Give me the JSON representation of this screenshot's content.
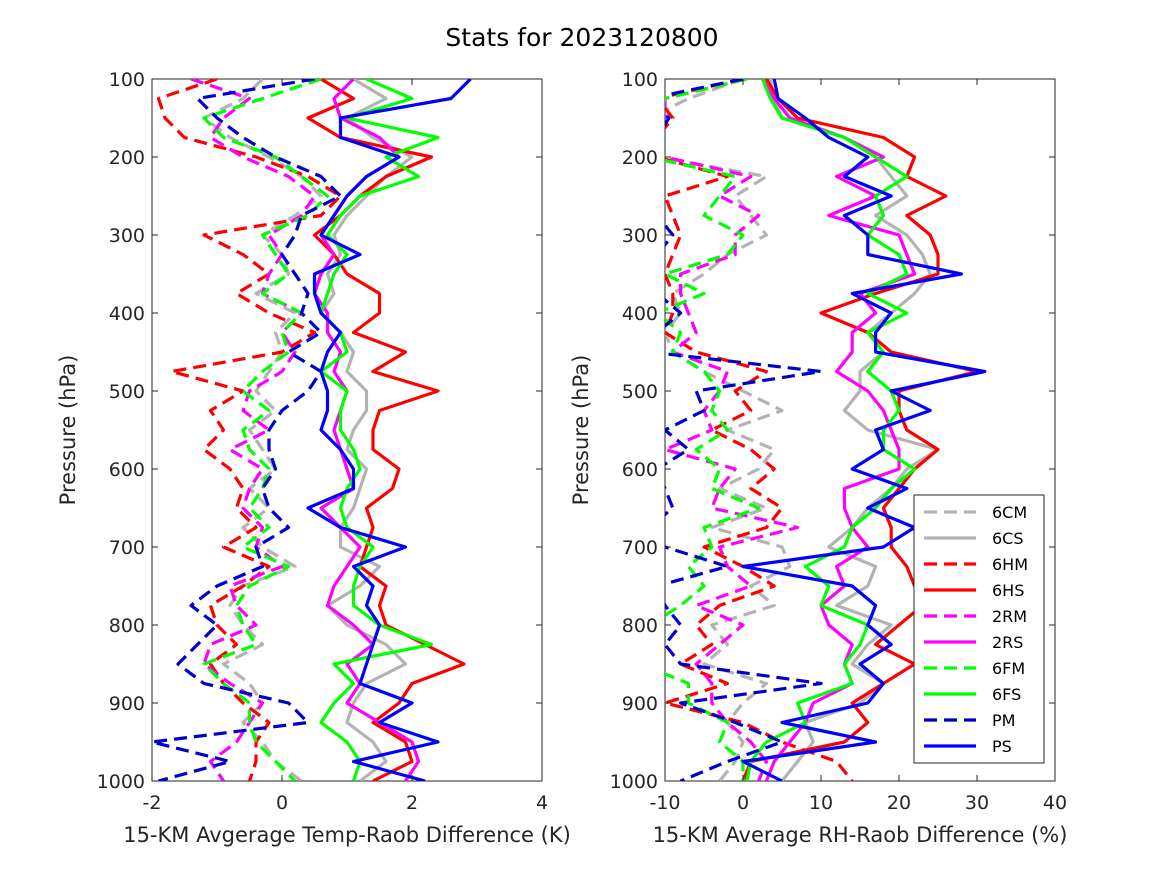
{
  "title": "Stats for 2023120800",
  "chart_data": [
    {
      "type": "line",
      "xlabel": "15-KM Avgerage Temp-Raob Difference (K)",
      "ylabel": "Pressure (hPa)",
      "xlim": [
        -2,
        4
      ],
      "ylim": [
        100,
        1000
      ],
      "y_reversed": true,
      "xticks": [
        "-2",
        "0",
        "2",
        "4"
      ],
      "yticks": [
        "100",
        "200",
        "300",
        "400",
        "500",
        "600",
        "700",
        "800",
        "900",
        "1000"
      ],
      "pressure": [
        100,
        125,
        150,
        175,
        200,
        225,
        250,
        275,
        300,
        325,
        350,
        375,
        400,
        425,
        450,
        475,
        500,
        525,
        550,
        575,
        600,
        625,
        650,
        675,
        700,
        725,
        750,
        775,
        800,
        825,
        850,
        875,
        900,
        925,
        950,
        975,
        1000
      ],
      "series": [
        {
          "name": "6CM",
          "color": "#b3b3b3",
          "dash": true,
          "values": [
            -0.3,
            -0.6,
            -1.2,
            -0.8,
            -0.2,
            0.3,
            0.6,
            0.2,
            -0.3,
            0.0,
            0.1,
            -0.4,
            0.2,
            -0.1,
            0.0,
            -0.2,
            -0.4,
            -0.1,
            -0.5,
            -0.3,
            -0.1,
            -0.5,
            -0.2,
            -0.6,
            -0.3,
            0.2,
            -0.6,
            -0.8,
            -0.6,
            -0.3,
            -0.9,
            -0.5,
            -0.3,
            -0.6,
            -0.3,
            -0.1,
            0.3
          ]
        },
        {
          "name": "6CS",
          "color": "#b3b3b3",
          "dash": false,
          "values": [
            1.1,
            1.6,
            1.0,
            1.4,
            2.0,
            1.6,
            1.3,
            1.0,
            0.8,
            0.9,
            0.7,
            0.8,
            0.6,
            0.9,
            1.1,
            1.0,
            1.3,
            1.3,
            1.1,
            1.0,
            1.3,
            1.2,
            1.1,
            0.9,
            0.9,
            1.5,
            1.2,
            0.7,
            1.0,
            1.6,
            1.9,
            1.3,
            1.1,
            1.0,
            1.4,
            1.6,
            1.2
          ]
        },
        {
          "name": "6HM",
          "color": "#ff0000",
          "dash": true,
          "values": [
            -1.0,
            -1.9,
            -1.8,
            -1.5,
            -0.4,
            0.4,
            0.9,
            0.6,
            -1.2,
            -0.6,
            -0.2,
            -0.7,
            -0.2,
            0.5,
            0.0,
            -1.7,
            -0.6,
            -1.1,
            -0.9,
            -1.2,
            -0.8,
            -0.6,
            -0.7,
            -0.4,
            -0.9,
            -0.2,
            -0.6,
            -1.1,
            -1.0,
            -0.7,
            -1.1,
            -0.9,
            -0.6,
            -0.2,
            -0.4,
            -0.4,
            -0.5
          ]
        },
        {
          "name": "6HS",
          "color": "#ff0000",
          "dash": false,
          "values": [
            0.6,
            1.1,
            0.4,
            0.9,
            2.3,
            1.6,
            1.2,
            0.9,
            0.5,
            0.8,
            1.0,
            1.5,
            1.5,
            1.1,
            1.9,
            1.4,
            2.4,
            1.5,
            1.4,
            1.4,
            1.8,
            1.7,
            1.3,
            1.4,
            1.3,
            1.2,
            1.6,
            1.5,
            1.6,
            2.2,
            2.8,
            2.0,
            1.8,
            1.4,
            1.9,
            2.0,
            1.4
          ]
        },
        {
          "name": "2RM",
          "color": "#ff00ff",
          "dash": true,
          "values": [
            -1.4,
            -0.5,
            -0.9,
            -1.1,
            -0.6,
            0.1,
            0.5,
            0.3,
            -0.2,
            0.0,
            -0.2,
            -0.3,
            0.3,
            0.0,
            0.2,
            0.0,
            -0.5,
            -0.6,
            -0.2,
            -0.8,
            -0.3,
            -0.5,
            -0.6,
            -0.3,
            -0.4,
            0.0,
            -0.8,
            -0.7,
            -0.4,
            -1.1,
            -1.2,
            -0.8,
            -0.3,
            -0.5,
            -0.7,
            -1.1,
            -0.9
          ]
        },
        {
          "name": "2RS",
          "color": "#ff00ff",
          "dash": false,
          "values": [
            1.1,
            0.8,
            0.9,
            1.5,
            1.8,
            1.3,
            1.0,
            0.8,
            0.6,
            0.8,
            0.6,
            0.5,
            0.7,
            0.7,
            0.9,
            0.8,
            1.0,
            0.9,
            0.8,
            0.9,
            1.0,
            1.1,
            0.6,
            0.9,
            1.2,
            1.0,
            0.8,
            0.7,
            1.1,
            1.4,
            1.0,
            1.2,
            1.0,
            1.5,
            2.0,
            2.1,
            1.9
          ]
        },
        {
          "name": "6FM",
          "color": "#00ff00",
          "dash": true,
          "values": [
            0.6,
            -0.3,
            -1.2,
            -0.9,
            -0.1,
            0.3,
            0.7,
            0.4,
            -0.3,
            -0.1,
            0.1,
            -0.3,
            0.3,
            0.0,
            0.1,
            -0.3,
            -0.6,
            -0.2,
            -0.6,
            -0.5,
            -0.2,
            -0.3,
            -0.5,
            -0.2,
            -0.6,
            0.1,
            -0.5,
            -0.7,
            -0.6,
            -0.4,
            -1.2,
            -0.9,
            -0.5,
            -0.5,
            -0.4,
            -0.1,
            0.2
          ]
        },
        {
          "name": "6FS",
          "color": "#00ff00",
          "dash": false,
          "values": [
            1.3,
            2.0,
            1.0,
            2.4,
            1.6,
            2.1,
            1.2,
            0.9,
            0.7,
            1.0,
            0.8,
            0.7,
            0.6,
            0.9,
            1.0,
            0.6,
            1.0,
            0.9,
            0.9,
            1.1,
            1.2,
            1.0,
            0.9,
            1.0,
            1.4,
            1.2,
            1.1,
            1.1,
            1.5,
            2.3,
            0.8,
            1.1,
            0.8,
            0.6,
            1.0,
            1.2,
            1.1
          ]
        },
        {
          "name": "PM",
          "color": "#0000cc",
          "dash": true,
          "values": [
            0.5,
            -1.3,
            -1.0,
            -0.6,
            -0.1,
            0.6,
            0.9,
            0.3,
            0.2,
            0.0,
            0.2,
            0.4,
            0.3,
            0.6,
            0.1,
            0.6,
            0.4,
            0.0,
            -0.2,
            -0.2,
            -0.1,
            -0.3,
            -0.2,
            0.1,
            -0.4,
            -0.3,
            -1.0,
            -1.4,
            -1.0,
            -1.3,
            -1.6,
            -1.2,
            0.1,
            0.4,
            -2.0,
            -0.8,
            -1.9
          ]
        },
        {
          "name": "PS",
          "color": "#0000ff",
          "dash": false,
          "values": [
            2.9,
            2.6,
            0.9,
            0.9,
            1.8,
            1.3,
            1.0,
            0.8,
            0.6,
            1.2,
            0.5,
            0.5,
            0.6,
            0.9,
            0.7,
            0.6,
            0.7,
            0.7,
            0.6,
            0.9,
            1.1,
            1.1,
            0.4,
            0.9,
            1.9,
            1.1,
            1.4,
            1.3,
            1.5,
            1.4,
            1.3,
            1.2,
            2.0,
            1.5,
            2.4,
            1.1,
            2.2
          ]
        }
      ]
    },
    {
      "type": "line",
      "xlabel": "15-KM Average RH-Raob Difference (%)",
      "ylabel": "Pressure (hPa)",
      "xlim": [
        -10,
        40
      ],
      "ylim": [
        100,
        1000
      ],
      "y_reversed": true,
      "xticks": [
        "-10",
        "0",
        "10",
        "20",
        "30",
        "40"
      ],
      "yticks": [
        "100",
        "200",
        "300",
        "400",
        "500",
        "600",
        "700",
        "800",
        "900",
        "1000"
      ],
      "pressure": [
        100,
        125,
        150,
        175,
        200,
        225,
        250,
        275,
        300,
        325,
        350,
        375,
        400,
        425,
        450,
        475,
        500,
        525,
        550,
        575,
        600,
        625,
        650,
        675,
        700,
        725,
        750,
        775,
        800,
        825,
        850,
        875,
        900,
        925,
        950,
        975,
        1000
      ],
      "series": [
        {
          "name": "6CM",
          "color": "#b3b3b3",
          "dash": true,
          "values": [
            0.0,
            -7.0,
            -12.0,
            -13.0,
            -11.0,
            3.0,
            -1.0,
            1.0,
            3.0,
            -2.0,
            -5.0,
            -9.0,
            -8.0,
            -10.0,
            -9.0,
            -5.0,
            0.0,
            5.0,
            -2.0,
            4.0,
            2.0,
            -3.0,
            3.0,
            -4.0,
            5.0,
            6.0,
            1.0,
            4.0,
            -4.0,
            -2.0,
            -5.0,
            3.0,
            0.0,
            -2.0,
            0.0,
            -1.0,
            -3.0
          ]
        },
        {
          "name": "6CS",
          "color": "#b3b3b3",
          "dash": false,
          "values": [
            3.5,
            4.0,
            5.0,
            13.0,
            17.0,
            19.0,
            21.0,
            17.0,
            21.0,
            23.0,
            24.0,
            22.0,
            19.0,
            16.0,
            18.0,
            15.0,
            15.0,
            13.0,
            16.0,
            25.0,
            21.0,
            19.0,
            16.0,
            14.0,
            11.0,
            17.0,
            16.0,
            12.0,
            19.0,
            16.0,
            14.0,
            18.0,
            15.0,
            8.0,
            9.0,
            7.0,
            5.0
          ]
        },
        {
          "name": "6HM",
          "color": "#ff0000",
          "dash": true,
          "values": [
            0.0,
            -11.0,
            -9.0,
            -11.0,
            -11.0,
            -2.0,
            -10.0,
            -9.0,
            -8.0,
            -9.0,
            -10.0,
            -9.0,
            -9.0,
            -10.0,
            -6.0,
            3.0,
            -1.0,
            1.0,
            -4.0,
            1.0,
            4.0,
            1.0,
            5.0,
            3.0,
            -5.0,
            0.0,
            4.0,
            -3.0,
            -6.0,
            -4.0,
            -8.0,
            -2.0,
            -10.0,
            0.0,
            5.0,
            12.0,
            14.0
          ]
        },
        {
          "name": "6HS",
          "color": "#ff0000",
          "dash": false,
          "values": [
            3.0,
            4.5,
            7.0,
            18.0,
            22.0,
            21.0,
            26.0,
            21.0,
            24.0,
            25.0,
            25.0,
            17.0,
            10.0,
            16.0,
            19.0,
            30.0,
            20.0,
            20.0,
            21.0,
            25.0,
            22.0,
            20.0,
            18.0,
            19.0,
            19.0,
            21.0,
            22.0,
            23.0,
            20.0,
            17.0,
            22.0,
            18.0,
            14.0,
            16.0,
            13.0,
            1.0,
            0.0
          ]
        },
        {
          "name": "2RM",
          "color": "#ff00ff",
          "dash": true,
          "values": [
            0.5,
            -10.0,
            -10.0,
            -12.0,
            -10.0,
            1.0,
            -3.0,
            2.0,
            -1.0,
            -1.0,
            -8.0,
            -8.0,
            -7.0,
            -6.0,
            -9.0,
            -2.0,
            -3.0,
            -5.0,
            -4.0,
            -10.0,
            -1.0,
            -3.0,
            -4.0,
            7.0,
            -3.0,
            -2.0,
            1.0,
            -6.0,
            0.0,
            -3.0,
            -6.0,
            -4.0,
            -4.0,
            -2.0,
            1.0,
            3.0,
            2.0
          ]
        },
        {
          "name": "2RS",
          "color": "#ff00ff",
          "dash": false,
          "values": [
            2.5,
            4.0,
            6.0,
            13.0,
            18.0,
            12.0,
            17.0,
            11.0,
            20.0,
            21.0,
            22.0,
            15.0,
            17.0,
            14.0,
            14.0,
            12.0,
            16.0,
            18.0,
            19.0,
            20.0,
            20.0,
            13.0,
            13.0,
            14.0,
            16.0,
            12.0,
            13.0,
            10.0,
            11.0,
            14.0,
            13.0,
            14.0,
            9.0,
            8.0,
            6.0,
            4.0,
            3.0
          ]
        },
        {
          "name": "6FM",
          "color": "#00ff00",
          "dash": true,
          "values": [
            0.5,
            -10.0,
            -11.0,
            -11.0,
            -12.0,
            -1.0,
            -3.0,
            -5.0,
            0.0,
            -2.0,
            -10.0,
            -5.0,
            -11.0,
            -8.0,
            -9.0,
            -5.0,
            -3.0,
            -4.0,
            -2.0,
            -6.0,
            -3.0,
            -4.0,
            2.0,
            -5.0,
            -4.0,
            -7.0,
            -5.0,
            -8.0,
            -12.0,
            -11.0,
            -13.0,
            -7.0,
            -7.0,
            -2.0,
            -3.0,
            0.0,
            0.0
          ]
        },
        {
          "name": "6FS",
          "color": "#00ff00",
          "dash": false,
          "values": [
            2.5,
            3.5,
            5.0,
            13.0,
            17.0,
            21.0,
            17.0,
            18.0,
            16.0,
            20.0,
            21.0,
            16.0,
            21.0,
            16.0,
            18.0,
            16.0,
            19.0,
            20.0,
            18.0,
            18.0,
            22.0,
            19.0,
            17.0,
            14.0,
            13.0,
            8.0,
            11.0,
            10.0,
            16.0,
            15.0,
            13.0,
            14.0,
            7.0,
            8.0,
            3.0,
            1.0,
            0.5
          ]
        },
        {
          "name": "PM",
          "color": "#0000cc",
          "dash": true,
          "values": [
            0.0,
            -12.0,
            -9.5,
            -11.0,
            -11.0,
            -12.0,
            -12.0,
            -11.0,
            -9.0,
            -11.0,
            -12.0,
            -11.0,
            -8.0,
            -11.0,
            -12.0,
            10.0,
            -6.0,
            -5.0,
            -10.0,
            -7.0,
            -11.0,
            -10.0,
            -9.0,
            -12.0,
            -10.0,
            -2.0,
            -11.0,
            -10.0,
            -8.0,
            -10.0,
            -8.0,
            10.0,
            -8.0,
            -1.0,
            5.0,
            -2.0,
            -8.0
          ]
        },
        {
          "name": "PS",
          "color": "#0000ff",
          "dash": false,
          "values": [
            4.0,
            4.5,
            8.0,
            11.0,
            16.0,
            13.0,
            19.0,
            13.0,
            16.0,
            16.0,
            28.0,
            14.0,
            19.0,
            17.0,
            17.0,
            31.0,
            19.0,
            24.0,
            17.0,
            18.0,
            14.0,
            21.0,
            16.0,
            22.0,
            18.0,
            0.0,
            14.0,
            17.0,
            16.0,
            19.0,
            15.0,
            18.0,
            16.0,
            5.0,
            17.0,
            0.0,
            5.0
          ]
        }
      ]
    }
  ]
}
